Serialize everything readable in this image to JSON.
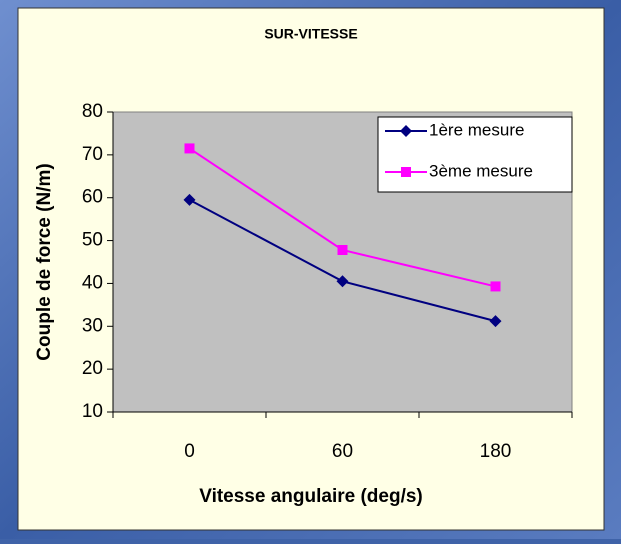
{
  "chart_data": {
    "type": "line",
    "title": "SUR-VITESSE",
    "x_label": "Vitesse angulaire (deg/s)",
    "y_label": "Couple de force (N/m)",
    "categories": [
      "0",
      "60",
      "180"
    ],
    "series": [
      {
        "name": "1ère mesure",
        "color": "#000080",
        "marker": "diamond",
        "values": [
          59.5,
          40.5,
          31.2
        ]
      },
      {
        "name": "3ème mesure",
        "color": "#ff00ff",
        "marker": "square",
        "values": [
          71.5,
          47.8,
          39.3
        ]
      }
    ],
    "ylim": [
      10,
      80
    ],
    "yticks": [
      10,
      20,
      30,
      40,
      50,
      60,
      70,
      80
    ],
    "legend": "upper right",
    "grid": false
  }
}
